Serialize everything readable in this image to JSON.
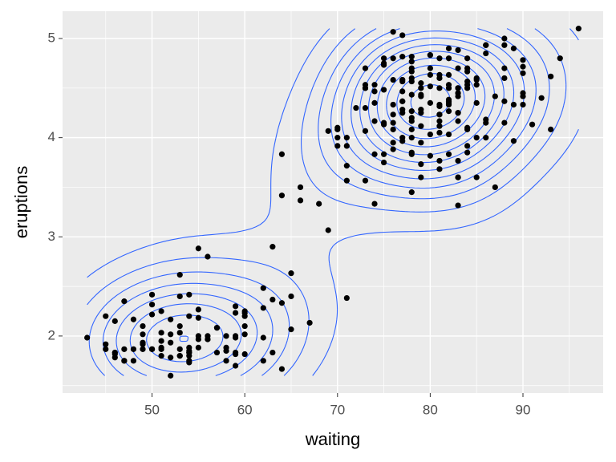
{
  "chart_data": {
    "type": "scatter_density2d",
    "xlabel": "waiting",
    "ylabel": "eruptions",
    "x": [
      79,
      54,
      74,
      62,
      85,
      55,
      88,
      85,
      51,
      85,
      54,
      84,
      78,
      47,
      83,
      52,
      62,
      84,
      52,
      79,
      51,
      47,
      78,
      69,
      74,
      83,
      55,
      76,
      78,
      79,
      73,
      77,
      66,
      80,
      74,
      52,
      48,
      80,
      59,
      90,
      80,
      58,
      84,
      58,
      73,
      83,
      64,
      53,
      82,
      59,
      75,
      90,
      54,
      80,
      54,
      83,
      71,
      64,
      77,
      81,
      59,
      84,
      48,
      82,
      60,
      92,
      78,
      78,
      65,
      73,
      82,
      56,
      79,
      71,
      62,
      76,
      60,
      78,
      76,
      83,
      75,
      82,
      70,
      65,
      73,
      88,
      76,
      80,
      48,
      86,
      60,
      90,
      50,
      78,
      63,
      72,
      84,
      75,
      51,
      82,
      62,
      88,
      49,
      83,
      81,
      47,
      84,
      52,
      86,
      81,
      75,
      59,
      89,
      79,
      59,
      81,
      50,
      85,
      59,
      87,
      53,
      69,
      77,
      56,
      88,
      81,
      45,
      82,
      55,
      90,
      45,
      83,
      56,
      89,
      46,
      82,
      51,
      86,
      53,
      79,
      81,
      60,
      82,
      77,
      76,
      59,
      80,
      49,
      96,
      53,
      77,
      77,
      65,
      81,
      71,
      70,
      81,
      93,
      53,
      89,
      45,
      86,
      58,
      78,
      66,
      76,
      63,
      88,
      52,
      93,
      49,
      57,
      77,
      68,
      81,
      81,
      73,
      50,
      85,
      74,
      55,
      77,
      83,
      83,
      51,
      78,
      84,
      46,
      83,
      55,
      81,
      57,
      76,
      84,
      77,
      81,
      87,
      77,
      51,
      78,
      60,
      82,
      91,
      53,
      78,
      46,
      77,
      84,
      49,
      83,
      71,
      80,
      49,
      75,
      64,
      76,
      53,
      94,
      55,
      76,
      50,
      82,
      54,
      75,
      78,
      79,
      78,
      78,
      70,
      79,
      70,
      54,
      86,
      50,
      90,
      54,
      54,
      77,
      79,
      64,
      75,
      47,
      86,
      63,
      85,
      82,
      57,
      82,
      67,
      74,
      54,
      83,
      73,
      73,
      88,
      80,
      71,
      83,
      56,
      79,
      78,
      84,
      58,
      83,
      43,
      60,
      75,
      81,
      46,
      90,
      46,
      74
    ],
    "values": [
      3.6,
      1.8,
      3.333,
      2.283,
      4.533,
      2.883,
      4.7,
      3.6,
      1.95,
      4.35,
      1.833,
      3.917,
      4.2,
      1.75,
      4.7,
      2.167,
      1.75,
      4.8,
      1.6,
      4.25,
      1.8,
      1.75,
      3.45,
      3.067,
      4.533,
      3.6,
      1.967,
      4.083,
      3.85,
      4.433,
      4.3,
      4.467,
      3.367,
      4.033,
      3.833,
      2.017,
      1.867,
      4.833,
      1.833,
      4.783,
      4.35,
      1.883,
      4.567,
      1.75,
      4.533,
      3.317,
      3.833,
      2.1,
      4.633,
      2,
      4.8,
      4.716,
      1.833,
      4.833,
      1.733,
      4.883,
      3.717,
      1.667,
      4.567,
      4.317,
      2.233,
      4.5,
      1.75,
      4.8,
      1.817,
      4.4,
      4.167,
      4.7,
      2.067,
      4.7,
      4.033,
      1.967,
      4.5,
      4,
      1.983,
      5.067,
      2.017,
      4.567,
      3.883,
      3.6,
      4.133,
      4.333,
      4.1,
      2.633,
      4.067,
      4.933,
      3.95,
      4.517,
      2.167,
      4,
      2.2,
      4.333,
      1.867,
      4.817,
      1.833,
      4.3,
      4.667,
      3.75,
      1.867,
      4.9,
      2.483,
      4.367,
      2.1,
      4.5,
      4.05,
      1.867,
      4.7,
      1.783,
      4.85,
      3.683,
      4.733,
      2.3,
      4.9,
      4.417,
      1.7,
      4.633,
      2.317,
      4.6,
      1.817,
      4.417,
      2.617,
      4.067,
      4.25,
      1.967,
      4.6,
      3.767,
      1.917,
      4.5,
      2.267,
      4.65,
      1.867,
      4.167,
      2.8,
      4.333,
      1.833,
      4.383,
      1.883,
      4.933,
      2.033,
      3.733,
      4.233,
      2.233,
      4.533,
      4.817,
      4.333,
      1.983,
      4.633,
      2.017,
      5.1,
      1.8,
      5.033,
      4,
      2.4,
      4.6,
      3.567,
      4,
      4.5,
      4.083,
      1.8,
      3.967,
      2.2,
      4.15,
      2,
      3.833,
      3.5,
      4.583,
      2.367,
      5,
      1.933,
      4.617,
      1.917,
      2.083,
      4.583,
      3.333,
      4.167,
      4.333,
      4.5,
      2.417,
      4,
      4.167,
      1.883,
      4.583,
      4.25,
      3.767,
      2.033,
      4.433,
      4.083,
      1.833,
      4.417,
      2.183,
      4.8,
      1.833,
      4.8,
      4.1,
      3.966,
      4.233,
      3.5,
      4.366,
      2.25,
      4.667,
      2.1,
      4.35,
      4.133,
      1.867,
      4.6,
      1.783,
      4.367,
      3.85,
      1.933,
      4.5,
      2.383,
      4.7,
      1.867,
      3.833,
      3.417,
      4.233,
      2.4,
      4.8,
      2,
      4.15,
      1.867,
      4.267,
      1.75,
      4.483,
      4,
      4.117,
      4.083,
      4.267,
      3.917,
      4.55,
      4.083,
      2.417,
      4.183,
      2.217,
      4.45,
      1.883,
      1.85,
      4.283,
      3.95,
      2.333,
      4.15,
      2.35,
      4.933,
      2.9,
      4.583,
      3.833,
      2.083,
      4.367,
      2.133,
      4.35,
      2.2,
      4.45,
      3.567,
      4.5,
      4.15,
      3.817,
      3.917,
      4.45,
      2,
      4.283,
      4.767,
      4.533,
      1.85,
      4.25,
      1.983,
      2.25,
      4.75,
      4.117,
      2.15,
      4.417,
      1.817,
      4.467
    ],
    "color": "#000000",
    "contour_color": "#3366FF",
    "xlim": [
      40.35,
      98.65
    ],
    "ylim": [
      1.425,
      5.275
    ],
    "xticks": [
      50,
      60,
      70,
      80,
      90
    ],
    "yticks": [
      2,
      3,
      4,
      5
    ],
    "x_minor_ticks": [
      45,
      55,
      65,
      75,
      85,
      95
    ],
    "y_minor_ticks": [
      1.5,
      2.5,
      3.5,
      4.5
    ],
    "grid": true
  }
}
